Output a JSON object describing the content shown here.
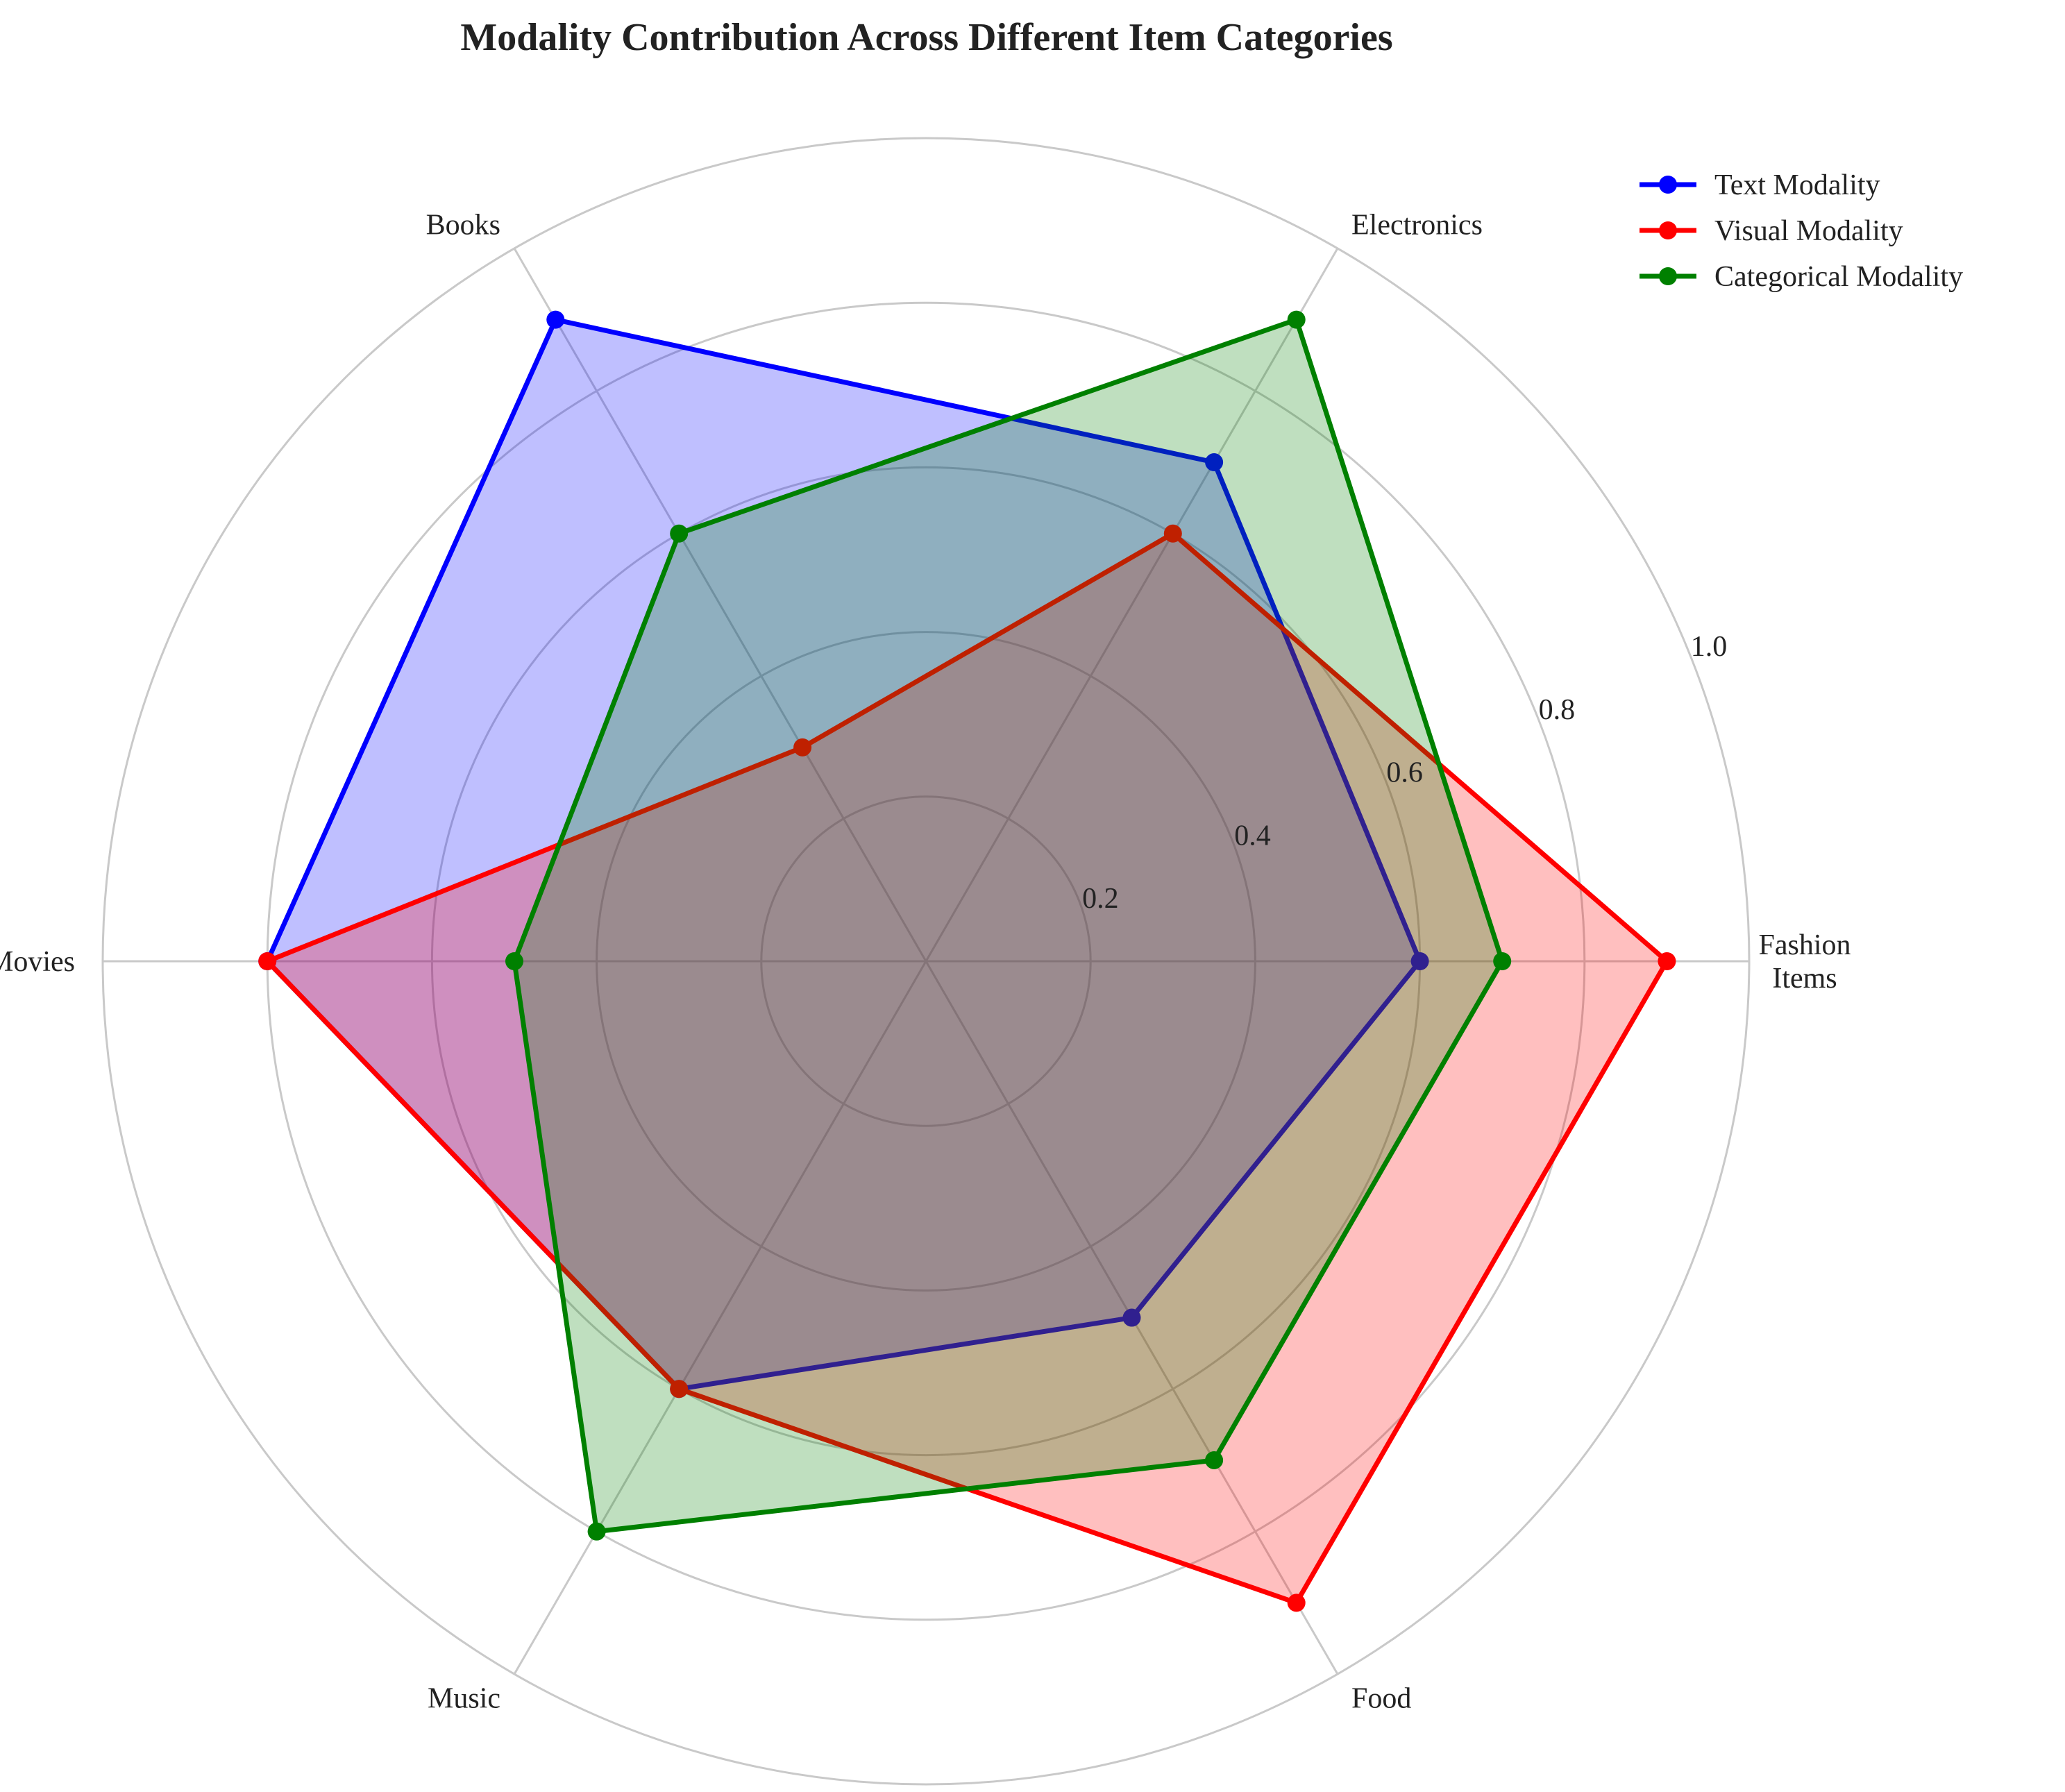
{
  "chart_data": {
    "type": "radar",
    "title": "Modality Contribution Across Different Item Categories",
    "categories": [
      "Fashion\nItems",
      "Electronics",
      "Books",
      "Movies",
      "Music",
      "Food"
    ],
    "rlim": [
      0,
      1.0
    ],
    "radial_ticks": [
      "0.2",
      "0.4",
      "0.6",
      "0.8",
      "1.0"
    ],
    "radial_tick_values": [
      0.2,
      0.4,
      0.6,
      0.8,
      1.0
    ],
    "grid": true,
    "legend_position": "top-right",
    "series": [
      {
        "name": "Text Modality",
        "color": "#0000ff",
        "fill": "#0000ff",
        "values": [
          0.6,
          0.7,
          0.9,
          0.8,
          0.6,
          0.5
        ]
      },
      {
        "name": "Visual Modality",
        "color": "#ff0000",
        "fill": "#ff0000",
        "values": [
          0.9,
          0.6,
          0.3,
          0.8,
          0.6,
          0.9
        ]
      },
      {
        "name": "Categorical Modality",
        "color": "#008000",
        "fill": "#008000",
        "values": [
          0.7,
          0.9,
          0.6,
          0.5,
          0.8,
          0.7
        ]
      }
    ]
  }
}
